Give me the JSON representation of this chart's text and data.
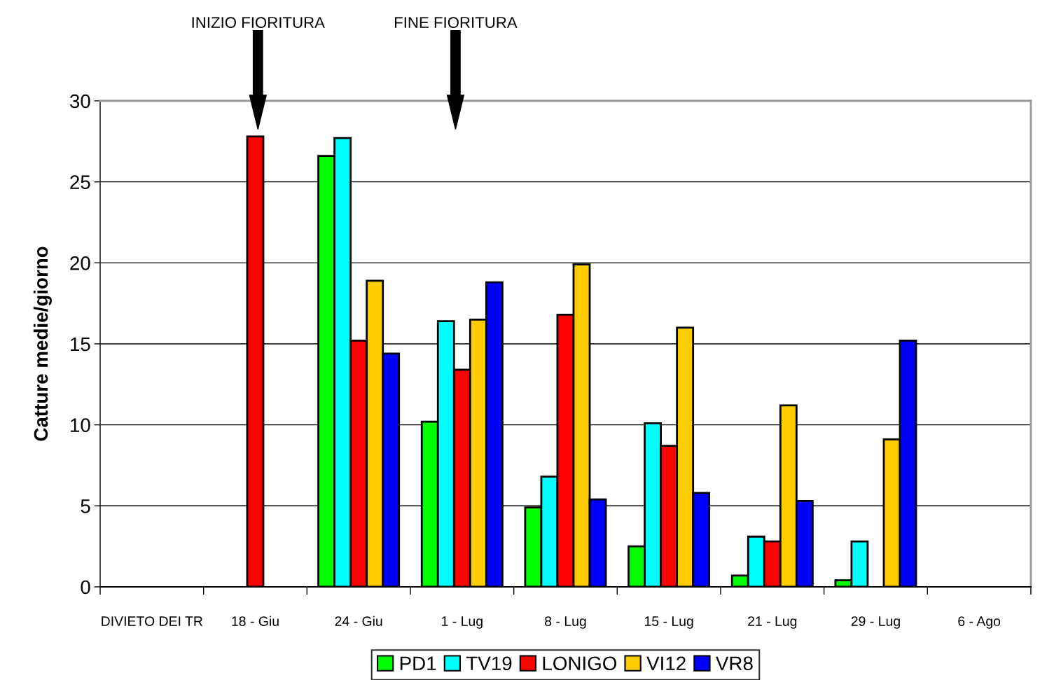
{
  "chart_data": {
    "type": "bar",
    "ylabel": "Catture medie/giorno",
    "categories": [
      "DIVIETO DEI TR",
      "18 - Giu",
      "24 - Giu",
      "1 - Lug",
      "8 - Lug",
      "15 - Lug",
      "21 - Lug",
      "29 - Lug",
      "6 - Ago"
    ],
    "series": [
      {
        "name": "PD1",
        "color": "#00ff00",
        "values": [
          null,
          null,
          26.6,
          10.2,
          4.9,
          2.5,
          0.7,
          0.4,
          null
        ]
      },
      {
        "name": "TV19",
        "color": "#00ffff",
        "values": [
          null,
          null,
          27.7,
          16.4,
          6.8,
          10.1,
          3.1,
          2.8,
          null
        ]
      },
      {
        "name": "LONIGO",
        "color": "#ff0000",
        "values": [
          null,
          27.8,
          15.2,
          13.4,
          16.8,
          8.7,
          2.8,
          null,
          null
        ]
      },
      {
        "name": "VI12",
        "color": "#ffcc00",
        "values": [
          null,
          null,
          18.9,
          16.5,
          19.9,
          16.0,
          11.2,
          9.1,
          null
        ]
      },
      {
        "name": "VR8",
        "color": "#0000ff",
        "values": [
          null,
          null,
          14.4,
          18.8,
          5.4,
          5.8,
          5.3,
          15.2,
          null
        ]
      }
    ],
    "ylim": [
      0,
      30
    ],
    "yticks": [
      0,
      5,
      10,
      15,
      20,
      25,
      30
    ],
    "grid": "y",
    "legend": "bottom",
    "annotations": [
      "INIZIO FIORITURA",
      "FINE FIORITURA"
    ]
  }
}
